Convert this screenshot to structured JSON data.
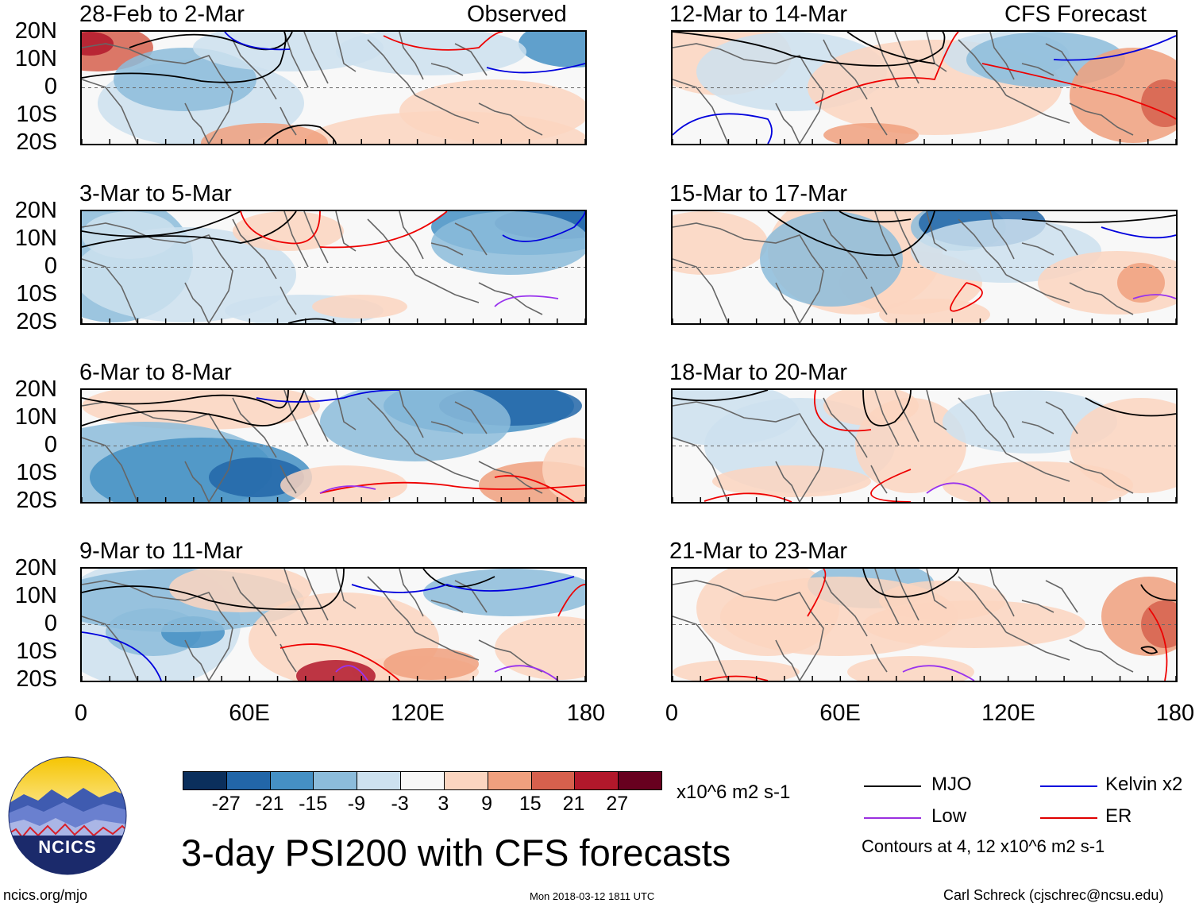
{
  "figure": {
    "main_title": "3-day PSI200 with CFS forecasts",
    "observed_label": "Observed",
    "forecast_label": "CFS Forecast",
    "website": "ncics.org/mjo",
    "timestamp": "Mon 2018-03-12 1811 UTC",
    "author": "Carl Schreck (cjschrec@ncsu.edu)",
    "logo_text": "NCICS"
  },
  "panels": {
    "left": [
      {
        "title": "28-Feb to 2-Mar"
      },
      {
        "title": "3-Mar to 5-Mar"
      },
      {
        "title": "6-Mar to 8-Mar"
      },
      {
        "title": "9-Mar to 11-Mar"
      }
    ],
    "right": [
      {
        "title": "12-Mar to 14-Mar"
      },
      {
        "title": "15-Mar to 17-Mar"
      },
      {
        "title": "18-Mar to 20-Mar"
      },
      {
        "title": "21-Mar to 23-Mar"
      }
    ]
  },
  "axes": {
    "y_ticks": [
      "20N",
      "10N",
      "0",
      "10S",
      "20S"
    ],
    "x_ticks": [
      "0",
      "60E",
      "120E",
      "180"
    ]
  },
  "colorbar": {
    "units": "x10^6 m2 s-1",
    "labels": [
      "-27",
      "-21",
      "-15",
      "-9",
      "-3",
      "3",
      "9",
      "15",
      "21",
      "27"
    ],
    "colors": [
      "#0b2f5c",
      "#2266a8",
      "#4590c4",
      "#8cbcdb",
      "#cde1ef",
      "#f8f8f8",
      "#fbd5c0",
      "#f0a07e",
      "#d6604d",
      "#b2182b",
      "#67001f"
    ]
  },
  "legend": {
    "items": [
      {
        "label": "MJO",
        "color": "#000000"
      },
      {
        "label": "Kelvin x2",
        "color": "#0000dd"
      },
      {
        "label": "Low",
        "color": "#9b30e0"
      },
      {
        "label": "ER",
        "color": "#e00000"
      }
    ],
    "contours_note": "Contours at 4, 12 x10^6 m2 s-1"
  },
  "chart_data": {
    "type": "heatmap",
    "variable": "PSI200 anomaly",
    "units": "x10^6 m2 s-1",
    "lon_range": [
      0,
      180
    ],
    "lat_range": [
      -20,
      20
    ],
    "levels": [
      -27,
      -21,
      -15,
      -9,
      -3,
      3,
      9,
      15,
      21,
      27
    ]
  }
}
